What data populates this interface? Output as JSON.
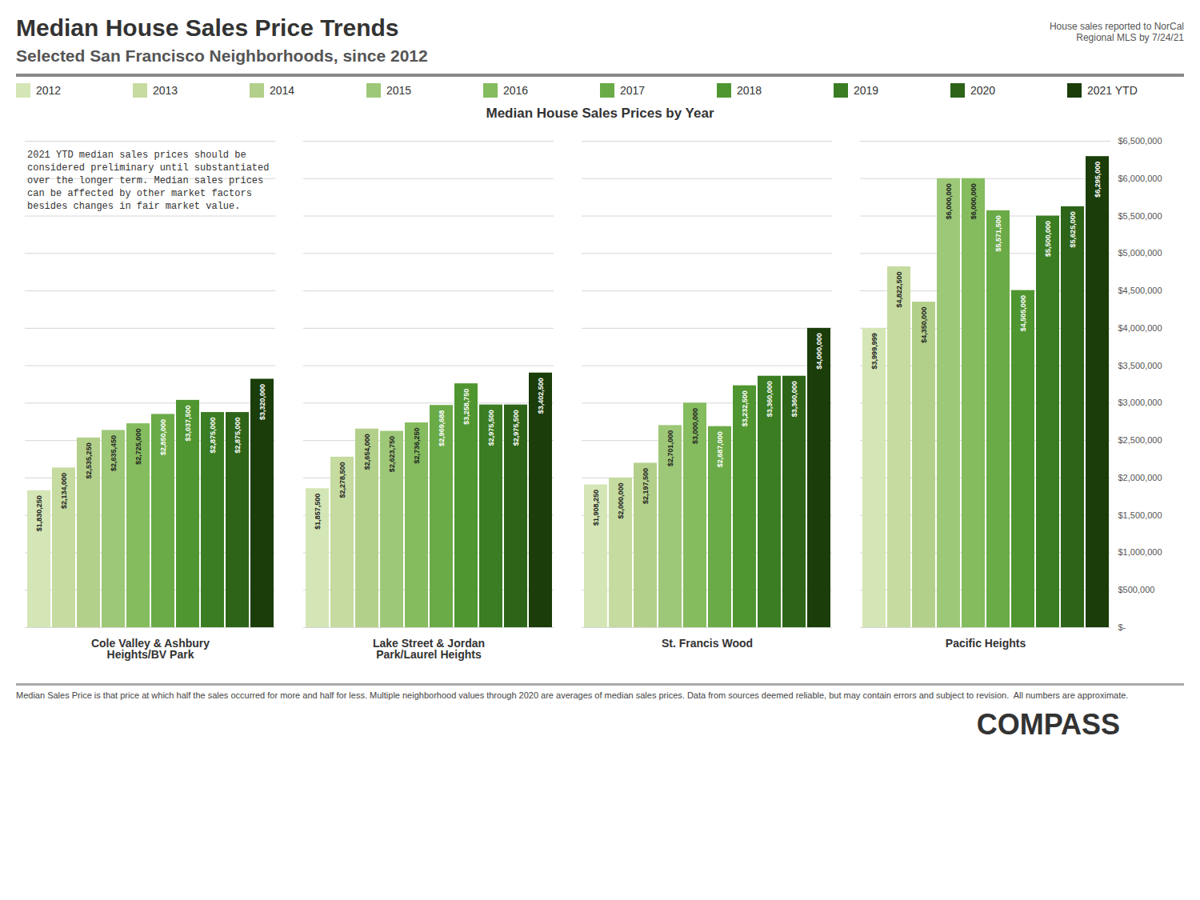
{
  "chart_data": {
    "type": "bar",
    "title": "Median House Sales Price Trends",
    "subtitle": "Selected San Francisco Neighborhoods, since 2012",
    "note": "House sales reported to NorCal\nRegional MLS by 7/24/21",
    "chart_subtitle": "Median House Sales Prices by Year",
    "annotation": "2021 YTD median sales prices should be\nconsidered preliminary until substantiated\nover the longer term. Median sales prices\ncan be affected by other market factors\nbesides changes in fair market value.",
    "footer": "Median Sales Price is that price at which half the sales occurred for more and half for less. Multiple neighborhood values through 2020 are averages of median sales prices. Data from sources deemed reliable, but may contain errors and subject to revision.  All numbers are approximate.",
    "logo": "COMPASS",
    "categories": [
      "Cole Valley & Ashbury\nHeights/BV Park",
      "Lake Street & Jordan\nPark/Laurel Heights",
      "St. Francis Wood",
      "Pacific Heights"
    ],
    "series": [
      {
        "name": "2012",
        "color": "#d4e6b5",
        "values": [
          1830250,
          1857500,
          1908250,
          3999999
        ],
        "value_labels": [
          "$1,830,250",
          "$1,857,500",
          "$1,908,250",
          "$3,999,999"
        ]
      },
      {
        "name": "2013",
        "color": "#c5dba0",
        "values": [
          2134000,
          2278500,
          2000000,
          4822500
        ],
        "value_labels": [
          "$2,134,000",
          "$2,278,500",
          "$2,000,000",
          "$4,822,500"
        ]
      },
      {
        "name": "2014",
        "color": "#b3d08a",
        "values": [
          2535250,
          2654000,
          2197500,
          4350000
        ],
        "value_labels": [
          "$2,535,250",
          "$2,654,000",
          "$2,197,500",
          "$4,350,000"
        ]
      },
      {
        "name": "2015",
        "color": "#9dc878",
        "values": [
          2635450,
          2623750,
          2701000,
          6000000
        ],
        "value_labels": [
          "$2,635,450",
          "$2,623,750",
          "$2,701,000",
          "$6,000,000"
        ]
      },
      {
        "name": "2016",
        "color": "#85bc5e",
        "values": [
          2725000,
          2736250,
          3000000,
          6000000
        ],
        "value_labels": [
          "$2,725,000",
          "$2,736,250",
          "$3,000,000",
          "$6,000,000"
        ]
      },
      {
        "name": "2017",
        "color": "#6aab47",
        "values": [
          2850000,
          2969688,
          2687000,
          5571500
        ],
        "value_labels": [
          "$2,850,000",
          "$2,969,688",
          "$2,687,000",
          "$5,571,500"
        ]
      },
      {
        "name": "2018",
        "color": "#4f9630",
        "values": [
          3037500,
          3258750,
          3232500,
          4505000
        ],
        "value_labels": [
          "$3,037,500",
          "$3,258,750",
          "$3,232,500",
          "$4,505,000"
        ]
      },
      {
        "name": "2019",
        "color": "#3a7d22",
        "values": [
          2875000,
          2975500,
          3360000,
          5500000
        ],
        "value_labels": [
          "$2,875,000",
          "$2,975,500",
          "$3,360,000",
          "$5,500,000"
        ]
      },
      {
        "name": "2020",
        "color": "#2d6418",
        "values": [
          2875000,
          2975500,
          3360000,
          5625000
        ],
        "value_labels": [
          "$2,875,000",
          "$2,975,500",
          "$3,360,000",
          "$5,625,000"
        ]
      },
      {
        "name": "2021 YTD",
        "color": "#1a3d0a",
        "values": [
          3320000,
          3402500,
          4000000,
          6295000
        ],
        "value_labels": [
          "$3,320,000",
          "$3,402,500",
          "$4,000,000",
          "$6,295,000"
        ]
      }
    ],
    "ylim": [
      0,
      6500000
    ],
    "yticks": [
      {
        "value": 0,
        "label": "$-"
      },
      {
        "value": 500000,
        "label": "$500,000"
      },
      {
        "value": 1000000,
        "label": "$1,000,000"
      },
      {
        "value": 1500000,
        "label": "$1,500,000"
      },
      {
        "value": 2000000,
        "label": "$2,000,000"
      },
      {
        "value": 2500000,
        "label": "$2,500,000"
      },
      {
        "value": 3000000,
        "label": "$3,000,000"
      },
      {
        "value": 3500000,
        "label": "$3,500,000"
      },
      {
        "value": 4000000,
        "label": "$4,000,000"
      },
      {
        "value": 4500000,
        "label": "$4,500,000"
      },
      {
        "value": 5000000,
        "label": "$5,000,000"
      },
      {
        "value": 5500000,
        "label": "$5,500,000"
      },
      {
        "value": 6000000,
        "label": "$6,000,000"
      },
      {
        "value": 6500000,
        "label": "$6,500,000"
      }
    ],
    "grid": true,
    "legend": "top",
    "data_labels": true
  }
}
